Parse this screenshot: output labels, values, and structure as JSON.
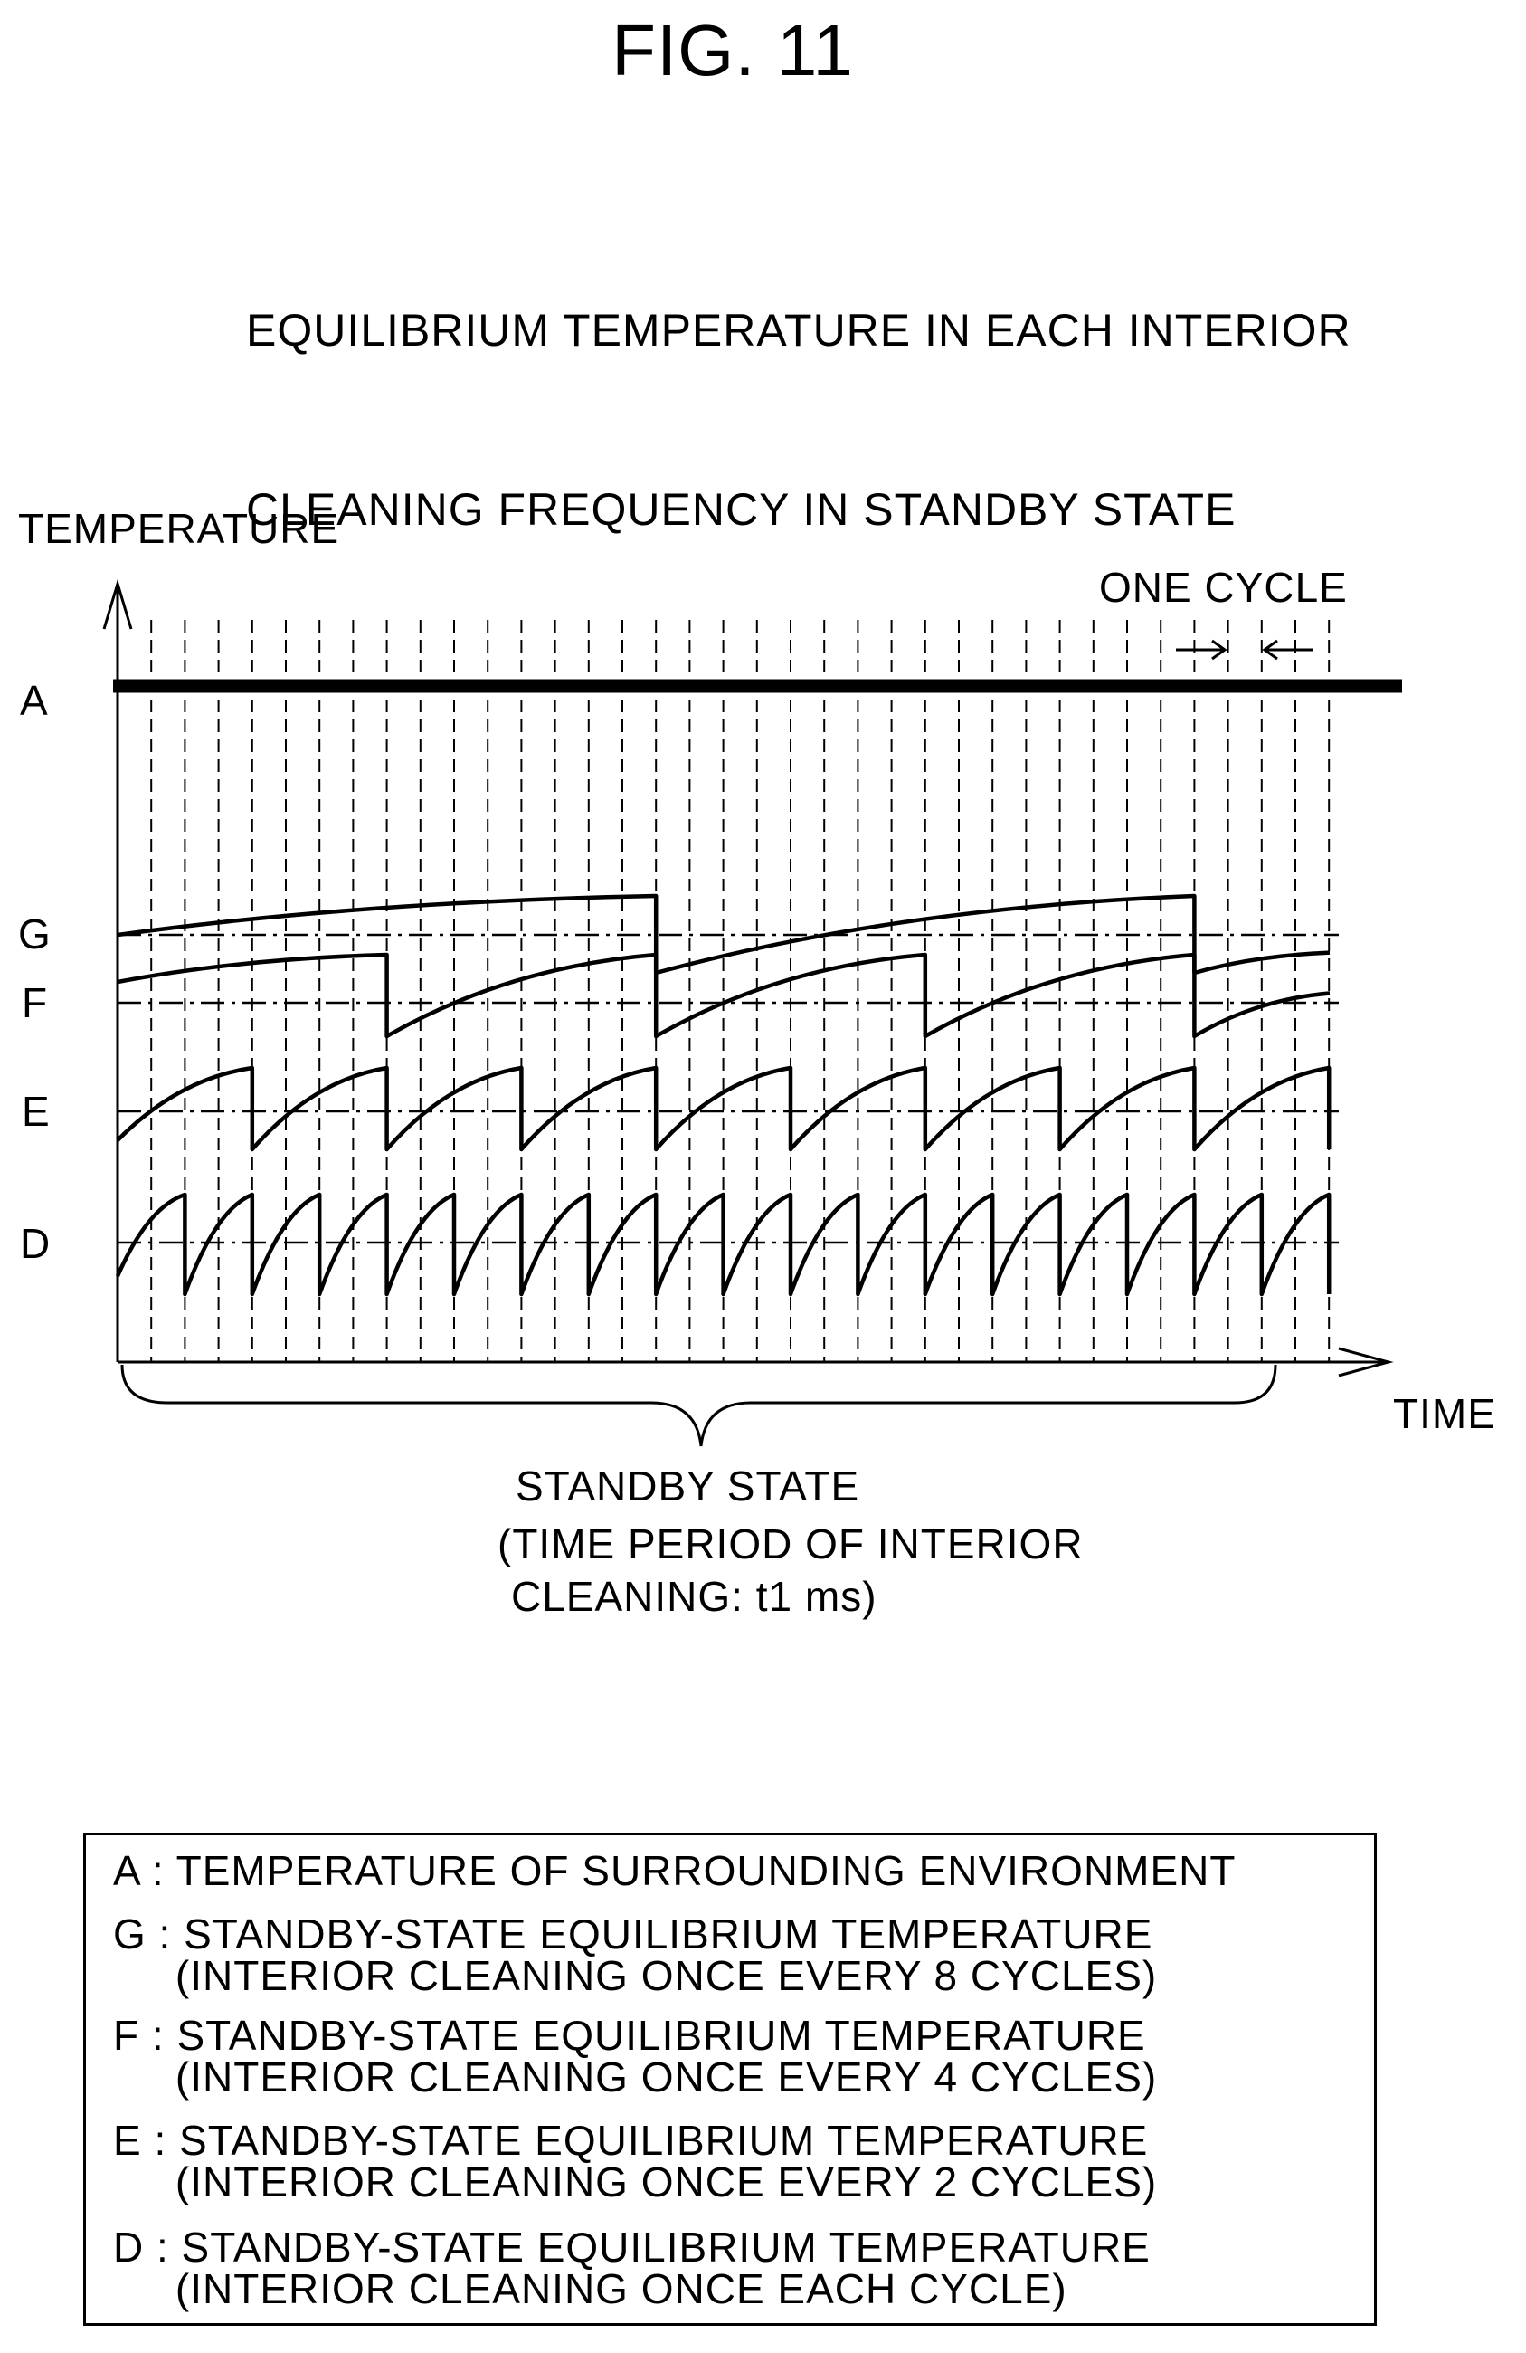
{
  "figure": {
    "title": "FIG. 11",
    "subtitle_lines": [
      "EQUILIBRIUM TEMPERATURE IN EACH INTERIOR",
      "CLEANING FREQUENCY IN STANDBY STATE"
    ]
  },
  "axes": {
    "y_label": "TEMPERATURE",
    "x_label": "TIME",
    "cycle_label": "ONE CYCLE"
  },
  "levels": {
    "A": "A",
    "G": "G",
    "F": "F",
    "E": "E",
    "D": "D"
  },
  "brace": {
    "lines": [
      "STANDBY STATE",
      "(TIME PERIOD OF INTERIOR",
      "CLEANING: t1 ms)"
    ]
  },
  "legend": [
    "A : TEMPERATURE OF SURROUNDING ENVIRONMENT",
    "G : STANDBY-STATE EQUILIBRIUM TEMPERATURE",
    "     (INTERIOR CLEANING ONCE EVERY 8 CYCLES)",
    "F : STANDBY-STATE EQUILIBRIUM TEMPERATURE",
    "     (INTERIOR CLEANING ONCE EVERY 4 CYCLES)",
    "E : STANDBY-STATE EQUILIBRIUM TEMPERATURE",
    "     (INTERIOR CLEANING ONCE EVERY 2 CYCLES)",
    "D : STANDBY-STATE EQUILIBRIUM TEMPERATURE",
    "     (INTERIOR CLEANING ONCE EACH CYCLE)"
  ],
  "waveforms": [
    {
      "key": "G",
      "cleaning_every_cycles": 8
    },
    {
      "key": "F",
      "cleaning_every_cycles": 4
    },
    {
      "key": "E",
      "cleaning_every_cycles": 2
    },
    {
      "key": "D",
      "cleaning_every_cycles": 1
    }
  ]
}
